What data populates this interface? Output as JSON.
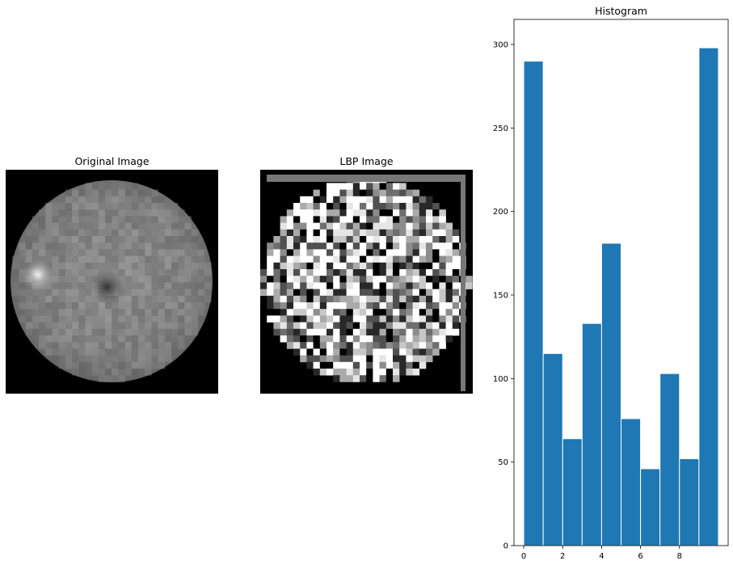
{
  "panels": {
    "original": {
      "title": "Original Image"
    },
    "lbp": {
      "title": "LBP Image"
    }
  },
  "chart_data": {
    "type": "bar",
    "title": "Histogram",
    "xlabel": "",
    "ylabel": "",
    "bar_color": "#1f77b4",
    "edge_color": "#ffffff",
    "bins": [
      {
        "x0": 0,
        "x1": 1,
        "value": 290
      },
      {
        "x0": 1,
        "x1": 2,
        "value": 115
      },
      {
        "x0": 2,
        "x1": 3,
        "value": 64
      },
      {
        "x0": 3,
        "x1": 4,
        "value": 133
      },
      {
        "x0": 4,
        "x1": 5,
        "value": 181
      },
      {
        "x0": 5,
        "x1": 6,
        "value": 76
      },
      {
        "x0": 6,
        "x1": 7,
        "value": 46
      },
      {
        "x0": 7,
        "x1": 8,
        "value": 103
      },
      {
        "x0": 8,
        "x1": 9,
        "value": 52
      },
      {
        "x0": 9,
        "x1": 10,
        "value": 298
      }
    ],
    "xlim": [
      -0.5,
      10.5
    ],
    "ylim": [
      0,
      315
    ],
    "xticks": [
      0,
      2,
      4,
      6,
      8
    ],
    "yticks": [
      0,
      50,
      100,
      150,
      200,
      250,
      300
    ],
    "grid": false
  }
}
